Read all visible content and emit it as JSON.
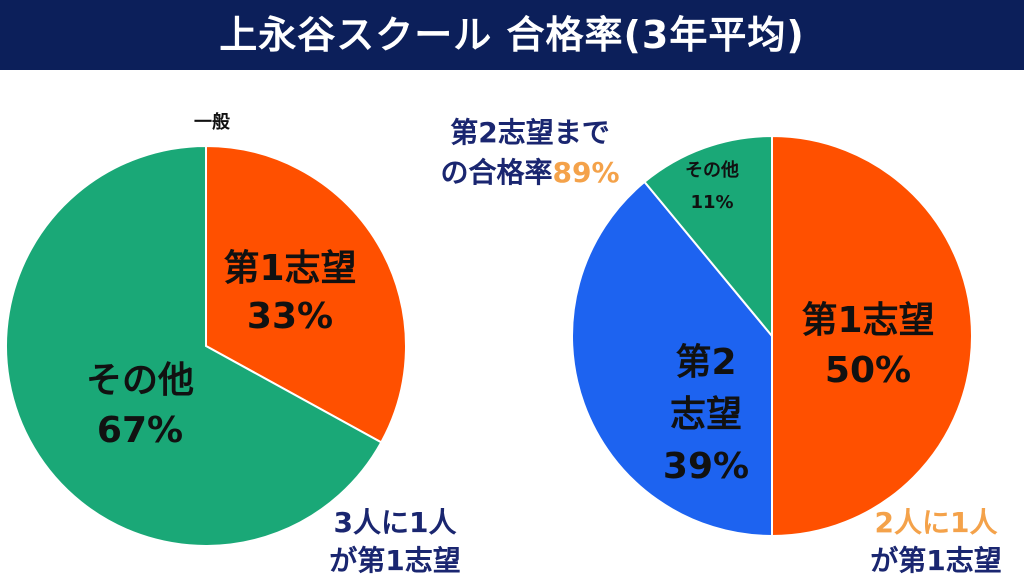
{
  "title": "上永谷スクール 合格率(3年平均)",
  "colors": {
    "banner": "#0c1f5a",
    "orange": "#ff5000",
    "green": "#1aa877",
    "blue": "#1d63f0",
    "accent": "#f4a24a",
    "navy": "#1a2670"
  },
  "chart_data": [
    {
      "type": "pie",
      "title": "一般",
      "slices": [
        {
          "label": "第1志望",
          "value": 33,
          "display": "33%",
          "color": "#ff5000"
        },
        {
          "label": "その他",
          "value": 67,
          "display": "67%",
          "color": "#1aa877"
        }
      ],
      "annotation": {
        "line1": "3人に1人",
        "line2": "が第1志望"
      }
    },
    {
      "type": "pie",
      "slices": [
        {
          "label": "第1志望",
          "value": 50,
          "display": "50%",
          "color": "#ff5000"
        },
        {
          "label": "第2志望",
          "label_lines": [
            "第2",
            "志望"
          ],
          "value": 39,
          "display": "39%",
          "color": "#1d63f0"
        },
        {
          "label": "その他",
          "value": 11,
          "display": "11%",
          "color": "#1aa877"
        }
      ],
      "annotation_top": {
        "line1": "第2志望まで",
        "line2_prefix": "の合格率",
        "line2_value": "89%"
      },
      "annotation": {
        "line1": "2人に1人",
        "line2": "が第1志望"
      }
    }
  ]
}
